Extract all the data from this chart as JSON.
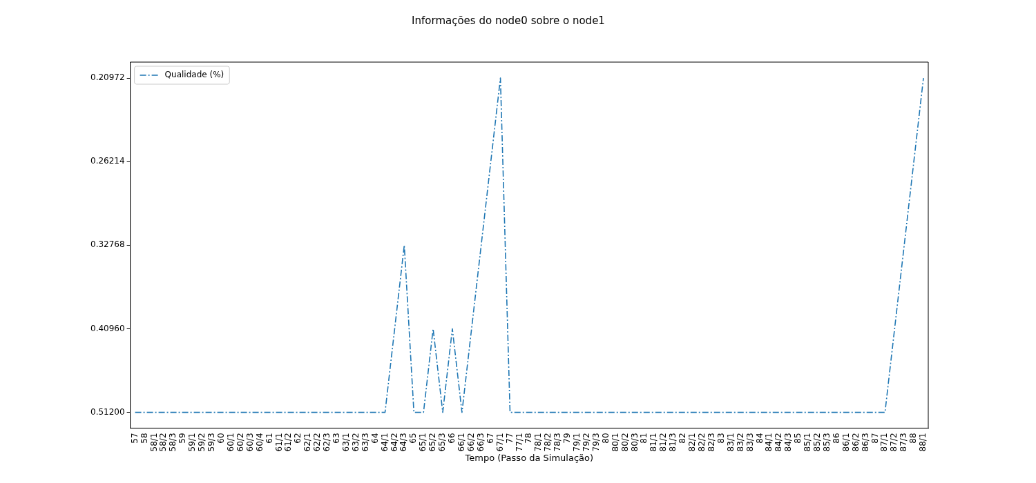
{
  "chart_data": {
    "type": "line",
    "title": "Informações do node0 sobre o node1",
    "xlabel": "Tempo (Passo da Simulação)",
    "categories": [
      "57",
      "58",
      "58/1",
      "58/2",
      "58/3",
      "59",
      "59/1",
      "59/2",
      "59/3",
      "60",
      "60/1",
      "60/2",
      "60/3",
      "60/4",
      "61",
      "61/1",
      "61/2",
      "62",
      "62/1",
      "62/2",
      "62/3",
      "63",
      "63/1",
      "63/2",
      "63/3",
      "64",
      "64/1",
      "64/2",
      "64/3",
      "65",
      "65/1",
      "65/2",
      "65/3",
      "66",
      "66/1",
      "66/2",
      "66/3",
      "67",
      "67/1",
      "77",
      "77/1",
      "78",
      "78/1",
      "78/2",
      "78/3",
      "79",
      "79/1",
      "79/2",
      "79/3",
      "80",
      "80/1",
      "80/2",
      "80/3",
      "81",
      "81/1",
      "81/2",
      "81/3",
      "82",
      "82/1",
      "82/2",
      "82/3",
      "83",
      "83/1",
      "83/2",
      "83/3",
      "84",
      "84/1",
      "84/2",
      "84/3",
      "85",
      "85/1",
      "85/2",
      "85/3",
      "86",
      "86/1",
      "86/2",
      "86/3",
      "87",
      "87/1",
      "87/2",
      "87/3",
      "88",
      "88/1"
    ],
    "series": [
      {
        "name": "Qualidade (%)",
        "color": "#1f77b4",
        "values": [
          0.512,
          0.512,
          0.512,
          0.512,
          0.512,
          0.512,
          0.512,
          0.512,
          0.512,
          0.512,
          0.512,
          0.512,
          0.512,
          0.512,
          0.512,
          0.512,
          0.512,
          0.512,
          0.512,
          0.512,
          0.512,
          0.512,
          0.512,
          0.512,
          0.512,
          0.512,
          0.512,
          0.4096,
          0.32768,
          0.512,
          0.512,
          0.4096,
          0.512,
          0.4096,
          0.512,
          0.4096,
          0.32768,
          0.262144,
          0.2097152,
          0.512,
          0.512,
          0.512,
          0.512,
          0.512,
          0.512,
          0.512,
          0.512,
          0.512,
          0.512,
          0.512,
          0.512,
          0.512,
          0.512,
          0.512,
          0.512,
          0.512,
          0.512,
          0.512,
          0.512,
          0.512,
          0.512,
          0.512,
          0.512,
          0.512,
          0.512,
          0.512,
          0.512,
          0.512,
          0.512,
          0.512,
          0.512,
          0.512,
          0.512,
          0.512,
          0.512,
          0.512,
          0.512,
          0.512,
          0.512,
          0.4096,
          0.32768,
          0.262144,
          0.2097152
        ]
      }
    ],
    "log": "y",
    "ylim": [
      0.534,
      0.201
    ],
    "yticks": [
      {
        "value": 0.512,
        "label": "0.51200"
      },
      {
        "value": 0.4096,
        "label": "0.40960"
      },
      {
        "value": 0.32768,
        "label": "0.32768"
      },
      {
        "value": 0.262144,
        "label": "0.26214"
      },
      {
        "value": 0.2097152,
        "label": "0.20972"
      }
    ],
    "grid": false,
    "legend": "top left",
    "marker": "none",
    "line_style": "dashed"
  }
}
